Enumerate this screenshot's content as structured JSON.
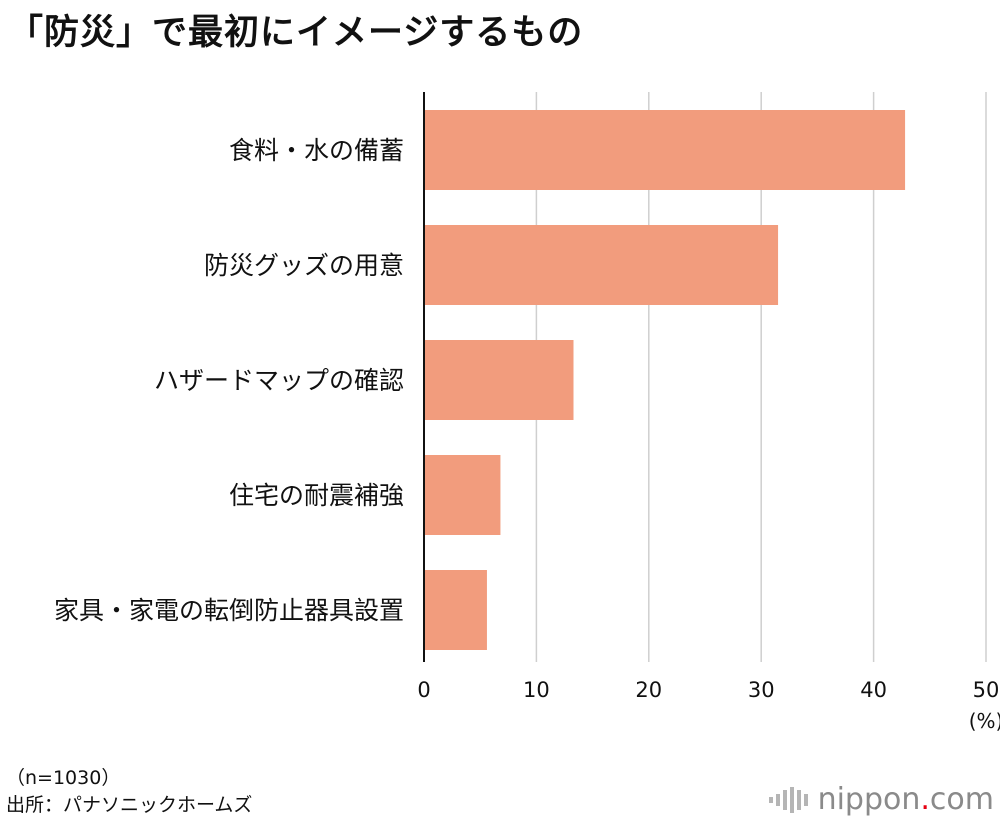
{
  "title": "「防災」で最初にイメージするもの",
  "chart_data": {
    "type": "bar",
    "orientation": "horizontal",
    "title": "「防災」で最初にイメージするもの",
    "categories": [
      "食料・水の備蓄",
      "防災グッズの用意",
      "ハザードマップの確認",
      "住宅の耐震補強",
      "家具・家電の転倒防止器具設置"
    ],
    "values": [
      42.8,
      31.5,
      13.3,
      6.8,
      5.6
    ],
    "xlim": [
      0,
      50
    ],
    "xticks": [
      "0",
      "10",
      "20",
      "30",
      "40",
      "50"
    ],
    "xlabel": "(%)",
    "grid": true,
    "bar_color": "#f29c7d"
  },
  "notes": {
    "sample": "（n=1030）",
    "source": "出所：パナソニックホームズ"
  },
  "brand": {
    "name": "nippon",
    "dot": ".",
    "suffix": "com"
  },
  "colors": {
    "grid": "#cfcfcf",
    "axis": "#111111",
    "bar": "#f29c7d",
    "brand_dot": "#e60012"
  }
}
